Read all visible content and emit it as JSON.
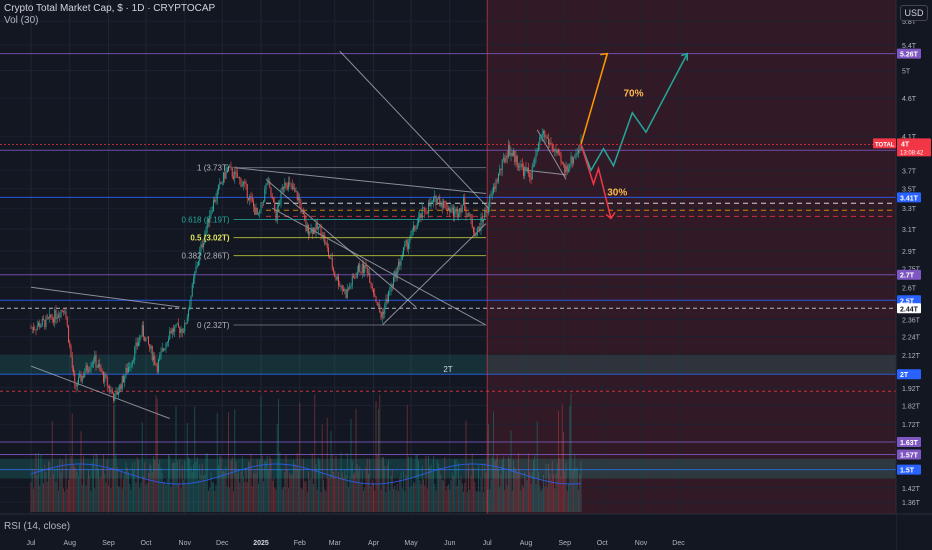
{
  "header": {
    "title": "Crypto Total Market Cap, $ · 1D · CRYPTOCAP",
    "volume_label": "Vol (30)",
    "rsi_label": "RSI (14, close)",
    "currency_button": "USD"
  },
  "colors": {
    "background": "#131722",
    "future_zone": "#4a1e2a",
    "up_candle": "#26a69a",
    "down_candle": "#ef5350",
    "fib": "#c9d03a",
    "horizontal_support": "#2962ff",
    "target_line": "#7e57c2",
    "bull_arrow": "#ff9800",
    "green_path": "#26a69a",
    "bear_arrow": "#f23645"
  },
  "chart_data": {
    "type": "candlestick",
    "title": "Crypto Total Market Cap, $ · 1D · CRYPTOCAP",
    "x_ticks": [
      "Jul",
      "Aug",
      "Sep",
      "Oct",
      "Nov",
      "Dec",
      "2025",
      "Feb",
      "Mar",
      "Apr",
      "May",
      "Jun",
      "Jul",
      "Aug",
      "Sep",
      "Oct",
      "Nov",
      "Dec"
    ],
    "y_axis": {
      "scale": "log",
      "unit": "T",
      "range": [
        1.32,
        6.0
      ],
      "ticks": [
        "5.8T",
        "5.4T",
        "5T",
        "4.6T",
        "4.1T",
        "3.7T",
        "3.5T",
        "3.3T",
        "3.1T",
        "2.9T",
        "2.75T",
        "2.6T",
        "2.36T",
        "2.24T",
        "2.12T",
        "1.92T",
        "1.82T",
        "1.72T",
        "1.42T",
        "1.36T"
      ]
    },
    "current_value": {
      "label": "TOTAL",
      "value": "4T",
      "countdown": "13:08:42"
    },
    "price_badges": [
      {
        "label": "5.26T",
        "value": 5.26,
        "color": "#7e57c2"
      },
      {
        "label": "3.93T",
        "value": 3.93,
        "color": "#7e57c2"
      },
      {
        "label": "3.41T",
        "value": 3.41,
        "color": "#2962ff"
      },
      {
        "label": "2.7T",
        "value": 2.7,
        "color": "#7e57c2"
      },
      {
        "label": "2.5T",
        "value": 2.5,
        "color": "#2962ff"
      },
      {
        "label": "2.44T",
        "value": 2.44,
        "color": "#ffffff"
      },
      {
        "label": "2T",
        "value": 2.0,
        "color": "#2962ff"
      },
      {
        "label": "1.63T",
        "value": 1.63,
        "color": "#7e57c2"
      },
      {
        "label": "1.57T",
        "value": 1.57,
        "color": "#7e57c2"
      },
      {
        "label": "1.5T",
        "value": 1.5,
        "color": "#2962ff"
      }
    ],
    "fib_levels": [
      {
        "label": "1 (3.73T)",
        "value": 3.73
      },
      {
        "label": "0.618 (3.19T)",
        "value": 3.19
      },
      {
        "label": "0.5 (3.02T)",
        "value": 3.02
      },
      {
        "label": "0.382 (2.86T)",
        "value": 2.86
      },
      {
        "label": "0 (2.32T)",
        "value": 2.32
      }
    ],
    "zone_labels": [
      {
        "label": "2T",
        "value": 2.0
      }
    ],
    "scenarios": [
      {
        "label": "70%",
        "direction": "up",
        "target": 5.26
      },
      {
        "label": "30%",
        "direction": "down",
        "target": 3.2
      }
    ],
    "price_path": [
      {
        "date": "2024-07-01",
        "value": 2.3
      },
      {
        "date": "2024-07-15",
        "value": 2.35
      },
      {
        "date": "2024-07-28",
        "value": 2.45
      },
      {
        "date": "2024-08-05",
        "value": 1.92
      },
      {
        "date": "2024-08-20",
        "value": 2.1
      },
      {
        "date": "2024-09-06",
        "value": 1.86
      },
      {
        "date": "2024-09-20",
        "value": 2.1
      },
      {
        "date": "2024-09-28",
        "value": 2.28
      },
      {
        "date": "2024-10-10",
        "value": 2.05
      },
      {
        "date": "2024-10-20",
        "value": 2.28
      },
      {
        "date": "2024-11-01",
        "value": 2.3
      },
      {
        "date": "2024-11-10",
        "value": 2.75
      },
      {
        "date": "2024-11-22",
        "value": 3.3
      },
      {
        "date": "2024-12-05",
        "value": 3.72
      },
      {
        "date": "2024-12-18",
        "value": 3.55
      },
      {
        "date": "2024-12-30",
        "value": 3.2
      },
      {
        "date": "2025-01-06",
        "value": 3.58
      },
      {
        "date": "2025-01-13",
        "value": 3.22
      },
      {
        "date": "2025-01-20",
        "value": 3.6
      },
      {
        "date": "2025-01-31",
        "value": 3.4
      },
      {
        "date": "2025-02-06",
        "value": 3.1
      },
      {
        "date": "2025-02-18",
        "value": 3.1
      },
      {
        "date": "2025-03-01",
        "value": 2.7
      },
      {
        "date": "2025-03-10",
        "value": 2.55
      },
      {
        "date": "2025-03-20",
        "value": 2.75
      },
      {
        "date": "2025-03-27",
        "value": 2.75
      },
      {
        "date": "2025-04-07",
        "value": 2.38
      },
      {
        "date": "2025-04-15",
        "value": 2.6
      },
      {
        "date": "2025-04-25",
        "value": 2.9
      },
      {
        "date": "2025-05-10",
        "value": 3.25
      },
      {
        "date": "2025-05-22",
        "value": 3.4
      },
      {
        "date": "2025-06-05",
        "value": 3.25
      },
      {
        "date": "2025-06-12",
        "value": 3.35
      },
      {
        "date": "2025-06-22",
        "value": 3.05
      },
      {
        "date": "2025-07-01",
        "value": 3.3
      },
      {
        "date": "2025-07-10",
        "value": 3.65
      },
      {
        "date": "2025-07-18",
        "value": 3.95
      },
      {
        "date": "2025-07-30",
        "value": 3.7
      },
      {
        "date": "2025-08-05",
        "value": 3.65
      },
      {
        "date": "2025-08-14",
        "value": 4.15
      },
      {
        "date": "2025-08-25",
        "value": 3.9
      },
      {
        "date": "2025-09-01",
        "value": 3.7
      },
      {
        "date": "2025-09-08",
        "value": 3.85
      },
      {
        "date": "2025-09-14",
        "value": 4.0
      }
    ]
  }
}
